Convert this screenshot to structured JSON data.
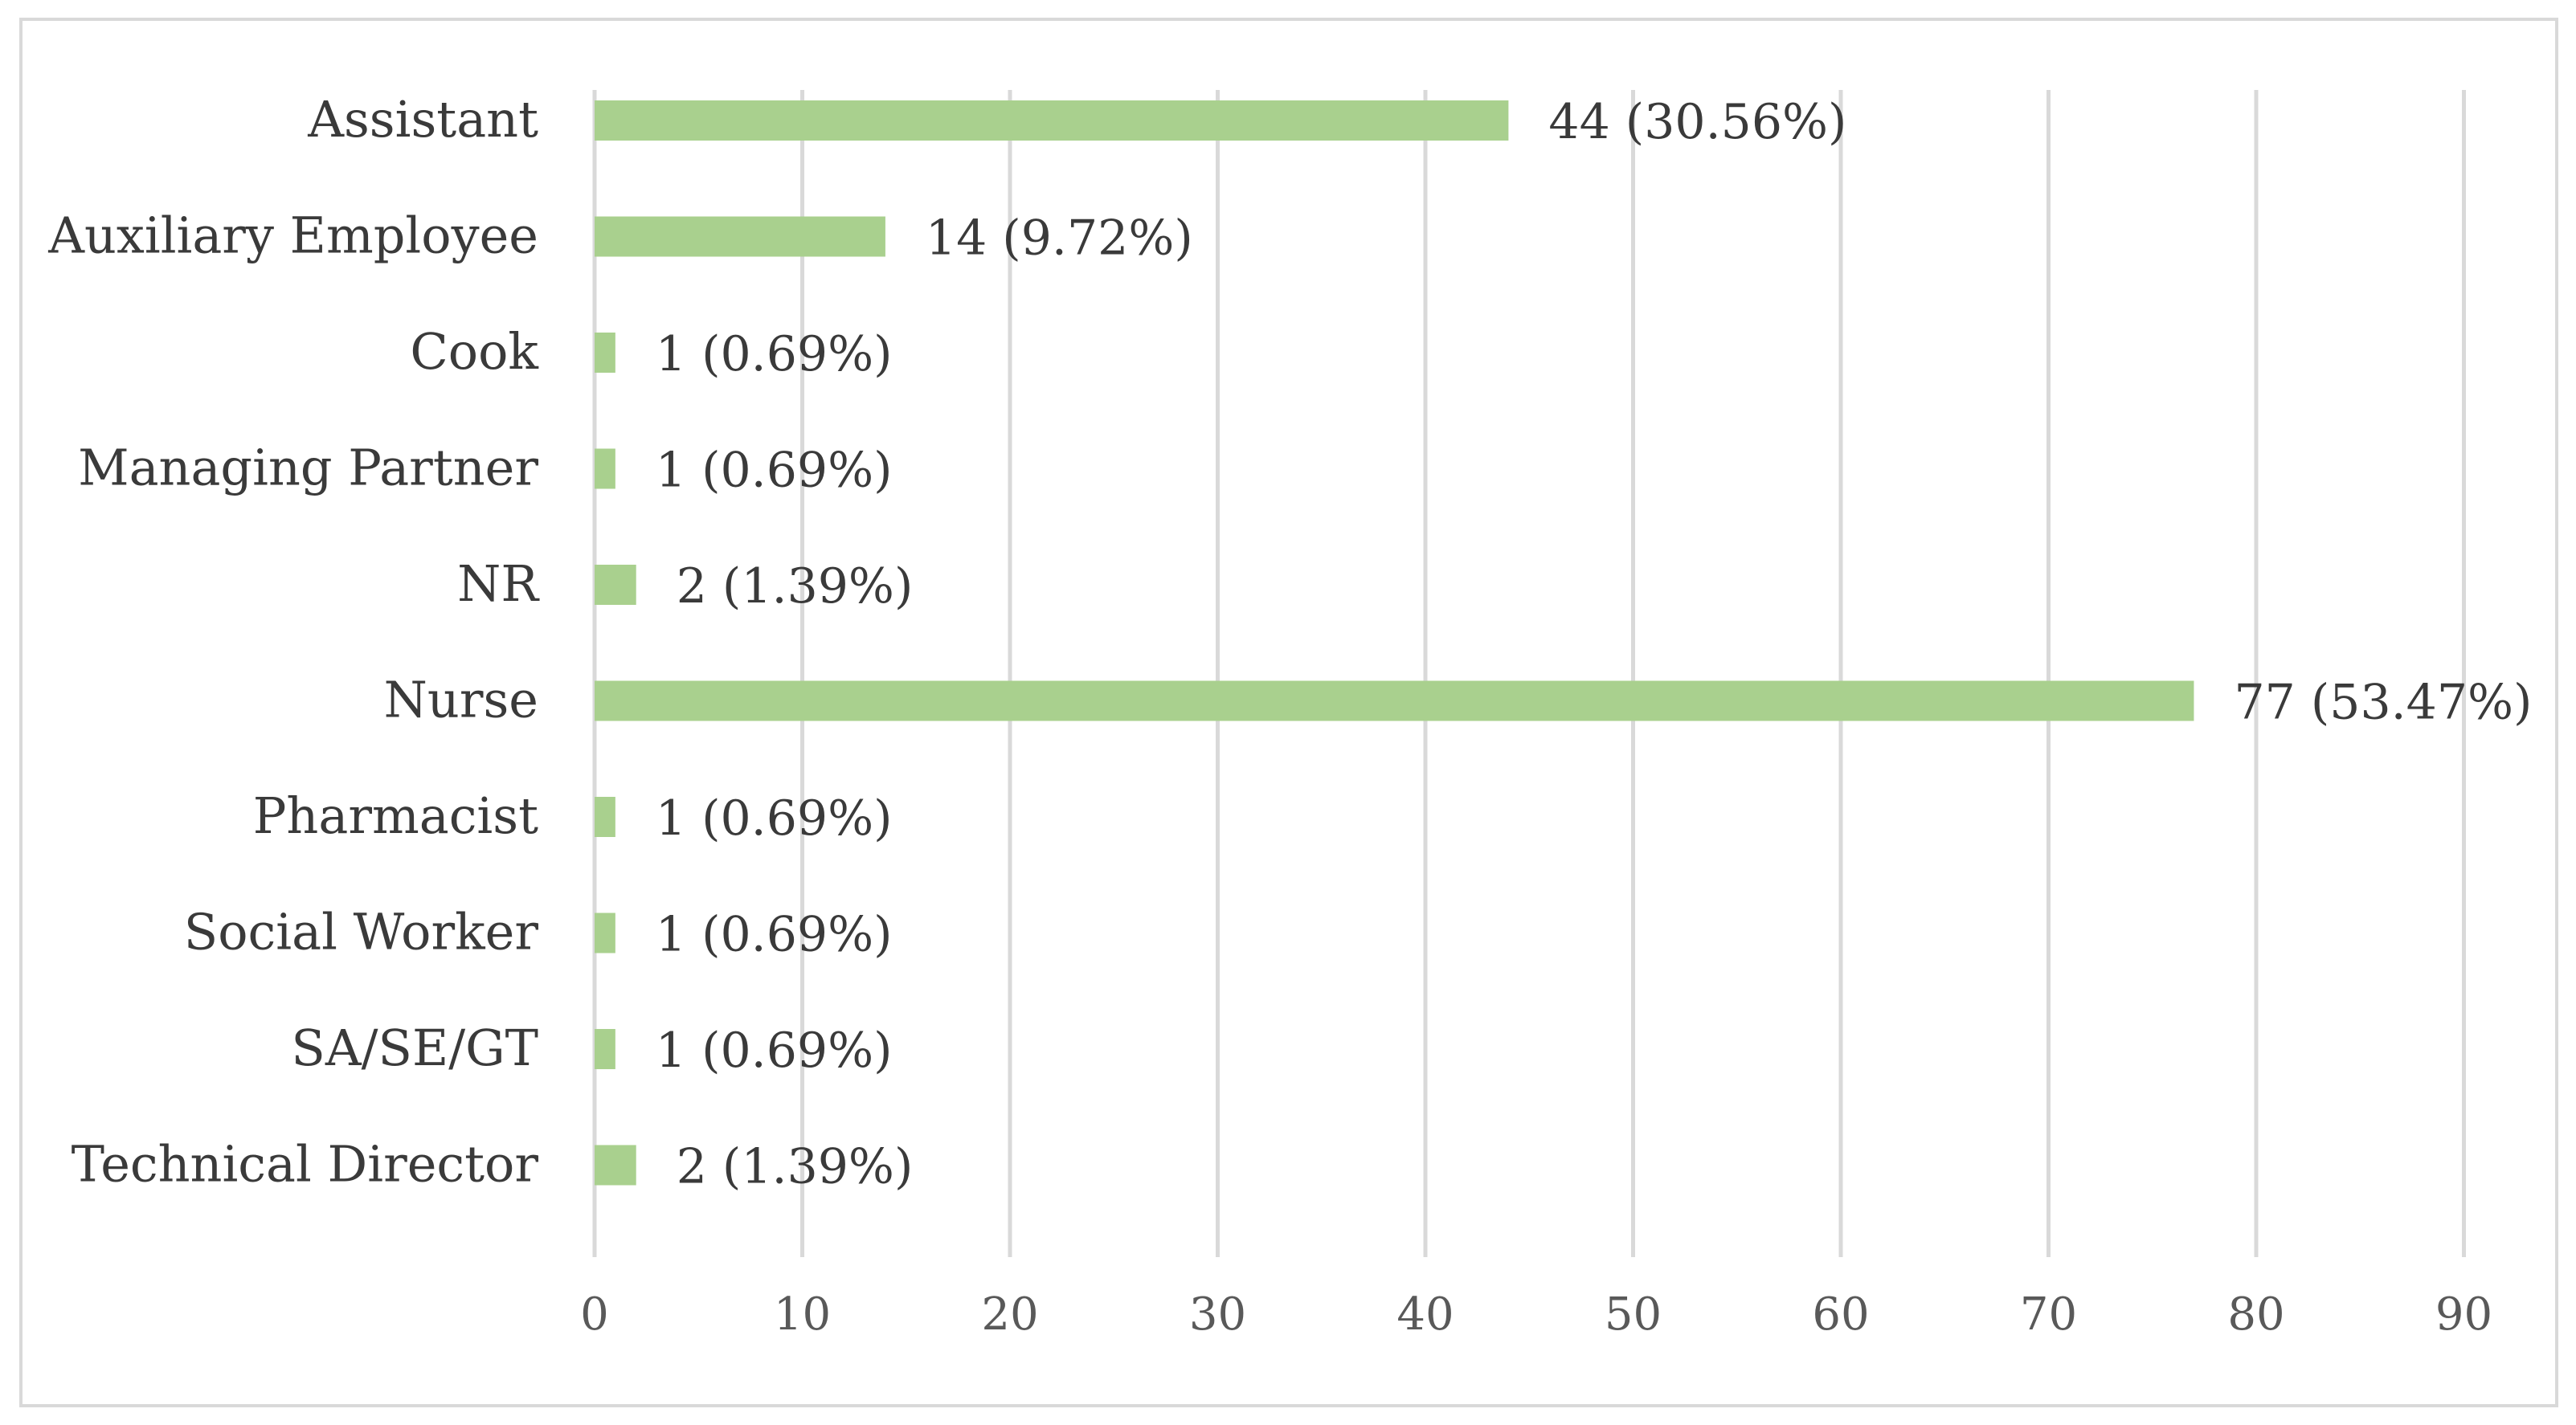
{
  "chart_data": {
    "type": "bar",
    "orientation": "horizontal",
    "categories": [
      "Assistant",
      "Auxiliary Employee",
      "Cook",
      "Managing Partner",
      "NR",
      "Nurse",
      "Pharmacist",
      "Social Worker",
      "SA/SE/GT",
      "Technical Director"
    ],
    "values": [
      44,
      14,
      1,
      1,
      2,
      77,
      1,
      1,
      1,
      2
    ],
    "data_labels": [
      "44 (30.56%)",
      "14 (9.72%)",
      "1 (0.69%)",
      "1 (0.69%)",
      "2 (1.39%)",
      "77 (53.47%)",
      "1 (0.69%)",
      "1 (0.69%)",
      "1 (0.69%)",
      "2 (1.39%)"
    ],
    "title": "",
    "xlabel": "",
    "ylabel": "",
    "xlim": [
      0,
      90
    ],
    "xticks": [
      0,
      10,
      20,
      30,
      40,
      50,
      60,
      70,
      80,
      90
    ],
    "grid": "vertical",
    "legend": "none",
    "colors": {
      "bar": "#a9d08e",
      "grid": "#d9d9d9",
      "frame": "#d9d9d9"
    }
  }
}
